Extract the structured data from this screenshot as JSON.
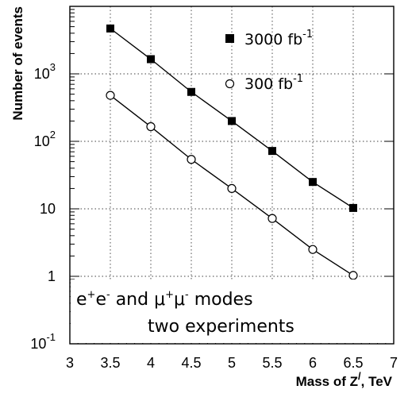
{
  "chart_data": {
    "type": "line",
    "xlabel_main": "Mass of Z",
    "xlabel_sup": "/",
    "xlabel_tail": ", TeV",
    "ylabel": "Number of events",
    "xlim": [
      3,
      7
    ],
    "ylim_log10": [
      -1,
      4
    ],
    "y_scale": "log",
    "grid": true,
    "x_ticks": [
      "3",
      "3.5",
      "4",
      "4.5",
      "5",
      "5.5",
      "6",
      "6.5",
      "7"
    ],
    "y_ticks": [
      {
        "value": -1,
        "base": "10",
        "sup": "-1"
      },
      {
        "value": 0,
        "base": "1",
        "sup": ""
      },
      {
        "value": 1,
        "base": "10",
        "sup": ""
      },
      {
        "value": 2,
        "base": "10",
        "sup": "2"
      },
      {
        "value": 3,
        "base": "10",
        "sup": "3"
      }
    ],
    "series": [
      {
        "name": "3000 fb",
        "name_sup": "-1",
        "marker": "filled-square",
        "x": [
          3.5,
          4.0,
          4.5,
          5.0,
          5.5,
          6.0,
          6.5
        ],
        "y": [
          4700,
          1650,
          540,
          200,
          72,
          25,
          10.3
        ]
      },
      {
        "name": "300 fb",
        "name_sup": "-1",
        "marker": "open-circle",
        "x": [
          3.5,
          4.0,
          4.5,
          5.0,
          5.5,
          6.0,
          6.5
        ],
        "y": [
          480,
          165,
          54,
          20,
          7.2,
          2.5,
          1.03
        ]
      }
    ],
    "annotation_line1": {
      "p1": "e",
      "s1": "+",
      "p2": "e",
      "s2": "-",
      "mid": " and ",
      "p3": "μ",
      "s3": "+",
      "p4": "μ",
      "s4": "-",
      "end": " modes"
    },
    "annotation_line2": "two experiments"
  }
}
